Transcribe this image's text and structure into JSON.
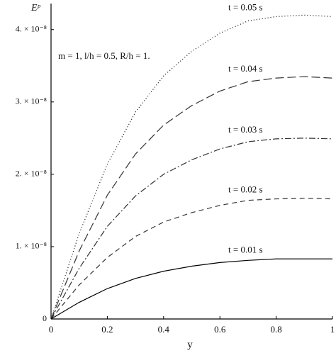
{
  "chart_data": {
    "type": "line",
    "y_label": "Eᵖ",
    "x_label": "y",
    "annotation": "m = 1, l/h = 0.5, R/h = 1.",
    "x": [
      0,
      0.1,
      0.2,
      0.3,
      0.4,
      0.5,
      0.6,
      0.7,
      0.8,
      0.9,
      1.0
    ],
    "series": [
      {
        "name": "t = 0.05 s",
        "color": "#000",
        "dash": "1,3",
        "values": [
          0,
          1.18e-08,
          2.14e-08,
          2.86e-08,
          3.36e-08,
          3.7e-08,
          3.95e-08,
          4.12e-08,
          4.18e-08,
          4.2e-08,
          4.18e-08
        ]
      },
      {
        "name": "t = 0.04 s",
        "color": "#333",
        "dash": "12,5",
        "values": [
          0,
          9.4e-09,
          1.71e-08,
          2.28e-08,
          2.68e-08,
          2.95e-08,
          3.15e-08,
          3.28e-08,
          3.33e-08,
          3.35e-08,
          3.33e-08
        ]
      },
      {
        "name": "t = 0.03 s",
        "color": "#333",
        "dash": "9,3,2,3",
        "values": [
          0,
          7e-09,
          1.28e-08,
          1.7e-08,
          2e-08,
          2.2e-08,
          2.35e-08,
          2.45e-08,
          2.49e-08,
          2.5e-08,
          2.49e-08
        ]
      },
      {
        "name": "t = 0.02 s",
        "color": "#333",
        "dash": "7,5",
        "values": [
          0,
          4.7e-09,
          8.5e-09,
          1.14e-08,
          1.34e-08,
          1.47e-08,
          1.57e-08,
          1.64e-08,
          1.66e-08,
          1.67e-08,
          1.66e-08
        ]
      },
      {
        "name": "t = 0.01 s",
        "color": "#000",
        "dash": "none",
        "values": [
          0,
          2.3e-09,
          4.2e-09,
          5.6e-09,
          6.6e-09,
          7.3e-09,
          7.8e-09,
          8.1e-09,
          8.3e-09,
          8.3e-09,
          8.3e-09
        ]
      }
    ],
    "xlim": [
      0,
      1
    ],
    "xticks": [
      0,
      0.2,
      0.4,
      0.6,
      0.8,
      1
    ],
    "ylim": [
      0,
      4.36e-08
    ],
    "yticks": [
      0,
      {
        "value": 1e-08,
        "label": "1. × 10⁻⁸"
      },
      {
        "value": 2e-08,
        "label": "2. × 10⁻⁸"
      },
      {
        "value": 3e-08,
        "label": "3. × 10⁻⁸"
      },
      {
        "value": 4e-08,
        "label": "4. × 10⁻⁸"
      }
    ]
  }
}
